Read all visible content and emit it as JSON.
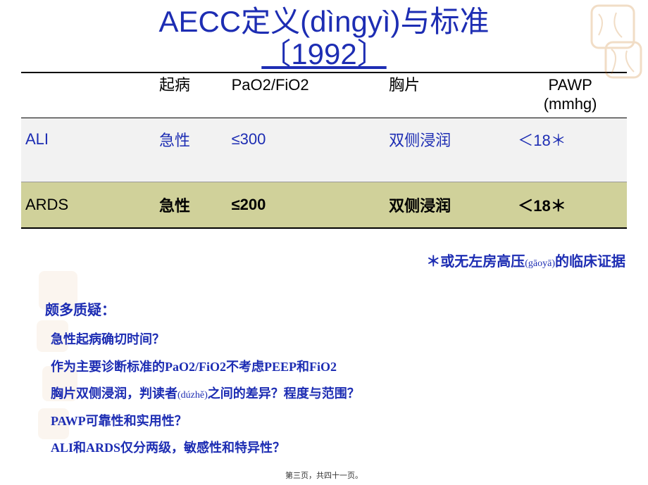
{
  "title_line1": "AECC定义(dìngyì)与标准",
  "title_line2": "〔1992〕",
  "table": {
    "headers": [
      "",
      "起病",
      "PaO2/FiO2",
      "胸片",
      "PAWP\n(mmhg)"
    ],
    "rows": [
      {
        "name": "ALI",
        "onset": "急性",
        "ratio": "≤300",
        "xray": "双侧浸润",
        "pawp": "＜18＊",
        "cls": "row-ali"
      },
      {
        "name": "ARDS",
        "onset": "急性",
        "ratio": "≤200",
        "xray": "双侧浸润",
        "pawp": "＜18＊",
        "cls": "row-ards"
      }
    ]
  },
  "footnote_right_a": "＊或无左房高压",
  "footnote_right_p": "(gāoyā)",
  "footnote_right_b": "的临床证据",
  "questions_head": "颇多质疑：",
  "questions": [
    {
      "a": "急性起病确切时间？",
      "p": "",
      "b": ""
    },
    {
      "a": "作为主要诊断标准的PaO2/FiO2不考虑PEEP和FiO2",
      "p": "",
      "b": ""
    },
    {
      "a": "胸片双侧浸润，判读者",
      "p": "(dúzhě)",
      "b": "之间的差异？程度与范围？"
    },
    {
      "a": "PAWP可靠性和实用性？",
      "p": "",
      "b": ""
    },
    {
      "a": "ALI和ARDS仅分两级，敏感性和特异性？",
      "p": "",
      "b": ""
    }
  ],
  "page_foot": "第三页，共四十一页。",
  "colors": {
    "title": "#1d2db3",
    "row_ali_bg": "#f2f2f2",
    "row_ards_bg": "#d0d19a"
  }
}
